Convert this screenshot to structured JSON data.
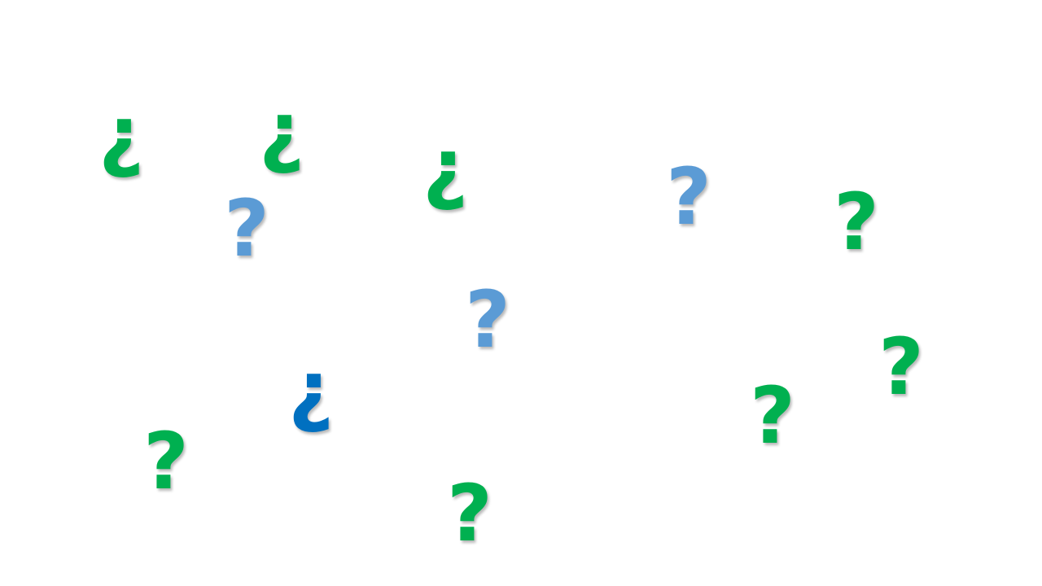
{
  "marks": [
    {
      "glyph": "¿",
      "color": "#00b050"
    },
    {
      "glyph": "¿",
      "color": "#00b050"
    },
    {
      "glyph": "¿",
      "color": "#00b050"
    },
    {
      "glyph": "?",
      "color": "#5b9bd5"
    },
    {
      "glyph": "?",
      "color": "#5b9bd5"
    },
    {
      "glyph": "?",
      "color": "#00b050"
    },
    {
      "glyph": "?",
      "color": "#5b9bd5"
    },
    {
      "glyph": "¿",
      "color": "#0070c0"
    },
    {
      "glyph": "?",
      "color": "#00b050"
    },
    {
      "glyph": "?",
      "color": "#00b050"
    },
    {
      "glyph": "?",
      "color": "#00b050"
    },
    {
      "glyph": "?",
      "color": "#00b050"
    }
  ]
}
